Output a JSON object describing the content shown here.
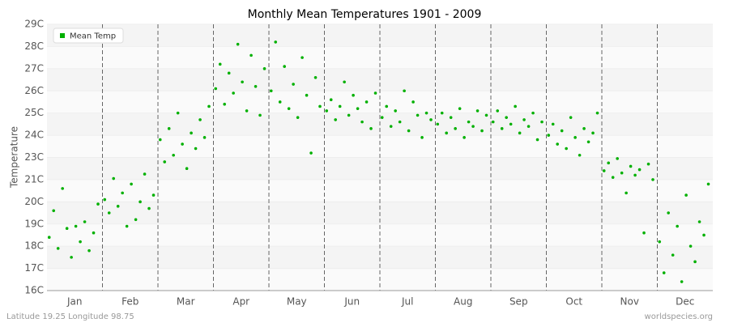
{
  "chart_data": {
    "type": "scatter",
    "title": "Monthly Mean Temperatures 1901 - 2009",
    "y_label": "Temperature",
    "categories": [
      "Jan",
      "Feb",
      "Mar",
      "Apr",
      "May",
      "Jun",
      "Jul",
      "Aug",
      "Sep",
      "Oct",
      "Nov",
      "Dec"
    ],
    "xlim": [
      0,
      12
    ],
    "ylim": [
      16,
      29
    ],
    "yticks": [
      {
        "value": 16,
        "label": "16C"
      },
      {
        "value": 17,
        "label": "17C"
      },
      {
        "value": 18,
        "label": "18C"
      },
      {
        "value": 19,
        "label": "19C"
      },
      {
        "value": 20,
        "label": "20C"
      },
      {
        "value": 21,
        "label": "21C"
      },
      {
        "value": 23,
        "label": "23C"
      },
      {
        "value": 24,
        "label": "24C"
      },
      {
        "value": 25,
        "label": "25C"
      },
      {
        "value": 26,
        "label": "26C"
      },
      {
        "value": 27,
        "label": "27C"
      },
      {
        "value": 28,
        "label": "28C"
      },
      {
        "value": 29,
        "label": "29C"
      }
    ],
    "grid": true,
    "legend": "top-left",
    "series": [
      {
        "name": "Mean Temp",
        "color": "#00b000",
        "x": [
          0.04,
          0.12,
          0.2,
          0.28,
          0.36,
          0.44,
          0.52,
          0.6,
          0.68,
          0.76,
          0.84,
          0.92,
          1.04,
          1.12,
          1.2,
          1.28,
          1.36,
          1.44,
          1.52,
          1.6,
          1.68,
          1.76,
          1.84,
          1.92,
          2.04,
          2.12,
          2.2,
          2.28,
          2.36,
          2.44,
          2.52,
          2.6,
          2.68,
          2.76,
          2.84,
          2.92,
          3.04,
          3.12,
          3.2,
          3.28,
          3.36,
          3.44,
          3.52,
          3.6,
          3.68,
          3.76,
          3.84,
          3.92,
          4.04,
          4.12,
          4.2,
          4.28,
          4.36,
          4.44,
          4.52,
          4.6,
          4.68,
          4.76,
          4.84,
          4.92,
          5.04,
          5.12,
          5.2,
          5.28,
          5.36,
          5.44,
          5.52,
          5.6,
          5.68,
          5.76,
          5.84,
          5.92,
          6.04,
          6.12,
          6.2,
          6.28,
          6.36,
          6.44,
          6.52,
          6.6,
          6.68,
          6.76,
          6.84,
          6.92,
          7.04,
          7.12,
          7.2,
          7.28,
          7.36,
          7.44,
          7.52,
          7.6,
          7.68,
          7.76,
          7.84,
          7.92,
          8.04,
          8.12,
          8.2,
          8.28,
          8.36,
          8.44,
          8.52,
          8.6,
          8.68,
          8.76,
          8.84,
          8.92,
          9.04,
          9.12,
          9.2,
          9.28,
          9.36,
          9.44,
          9.52,
          9.6,
          9.68,
          9.76,
          9.84,
          9.92,
          10.04,
          10.12,
          10.2,
          10.28,
          10.36,
          10.44,
          10.52,
          10.6,
          10.68,
          10.76,
          10.84,
          10.92,
          11.04,
          11.12,
          11.2,
          11.28,
          11.36,
          11.44,
          11.52,
          11.6,
          11.68,
          11.76,
          11.84,
          11.92
        ],
        "values": [
          18.4,
          19.6,
          17.9,
          20.6,
          18.8,
          17.5,
          18.9,
          18.2,
          19.1,
          17.8,
          18.6,
          19.9,
          20.1,
          19.5,
          21.1,
          19.8,
          20.4,
          18.9,
          20.8,
          19.2,
          20.0,
          21.5,
          19.7,
          20.3,
          23.8,
          22.6,
          24.3,
          23.1,
          25.0,
          23.6,
          22.0,
          24.1,
          23.4,
          24.7,
          23.9,
          25.3,
          26.1,
          27.2,
          25.4,
          26.8,
          25.9,
          28.1,
          26.4,
          25.1,
          27.6,
          26.2,
          24.9,
          27.0,
          26.0,
          28.2,
          25.5,
          27.1,
          25.2,
          26.3,
          24.8,
          27.5,
          25.8,
          23.2,
          26.6,
          25.3,
          25.1,
          25.6,
          24.7,
          25.3,
          26.4,
          24.9,
          25.8,
          25.2,
          24.6,
          25.5,
          24.3,
          25.9,
          24.8,
          25.3,
          24.4,
          25.1,
          24.6,
          26.0,
          24.2,
          25.5,
          24.9,
          23.9,
          25.0,
          24.7,
          24.5,
          25.0,
          24.1,
          24.8,
          24.3,
          25.2,
          23.9,
          24.6,
          24.4,
          25.1,
          24.2,
          24.9,
          24.6,
          25.1,
          24.3,
          24.8,
          24.5,
          25.3,
          24.1,
          24.7,
          24.4,
          25.0,
          23.8,
          24.6,
          24.0,
          24.5,
          23.6,
          24.2,
          23.4,
          24.8,
          23.9,
          23.1,
          24.3,
          23.7,
          24.1,
          25.0,
          21.8,
          22.5,
          21.2,
          22.9,
          21.6,
          20.4,
          22.2,
          21.4,
          21.9,
          18.6,
          22.4,
          21.0,
          18.2,
          16.8,
          19.5,
          17.6,
          18.9,
          16.4,
          20.3,
          18.0,
          17.3,
          19.1,
          18.5,
          20.8
        ]
      }
    ],
    "footer_left": "Latitude 19.25 Longitude 98.75",
    "footer_right": "worldspecies.org"
  }
}
